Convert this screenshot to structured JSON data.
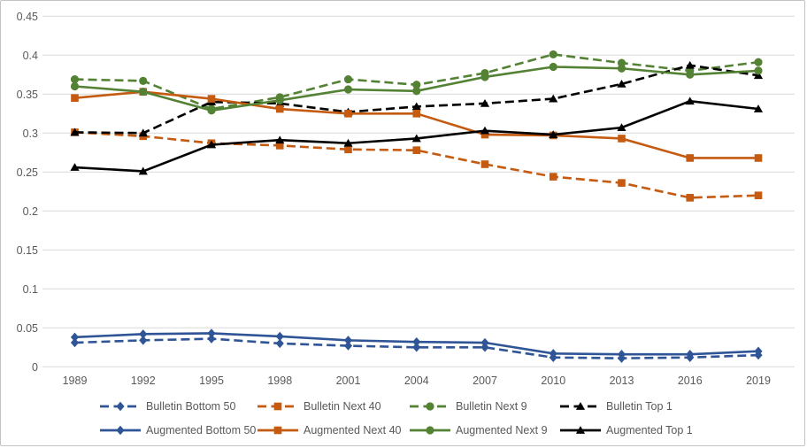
{
  "figure": {
    "background": "#ffffff",
    "border_color": "#c3c3c3",
    "gridline_color": "#d9d9d9",
    "label_color": "#595959"
  },
  "chart_data": {
    "type": "line",
    "x": [
      1989,
      1992,
      1995,
      1998,
      2001,
      2004,
      2007,
      2010,
      2013,
      2016,
      2019
    ],
    "x_tick_labels": [
      "1989",
      "1992",
      "1995",
      "1998",
      "2001",
      "2004",
      "2007",
      "2010",
      "2013",
      "2016",
      "2019"
    ],
    "y_ticks": [
      0,
      0.05,
      0.1,
      0.15,
      0.2,
      0.25,
      0.3,
      0.35,
      0.4,
      0.45
    ],
    "y_tick_labels": [
      "0",
      "0.05",
      "0.1",
      "0.15",
      "0.2",
      "0.25",
      "0.3",
      "0.35",
      "0.4",
      "0.45"
    ],
    "ylim": [
      0,
      0.45
    ],
    "grid": true,
    "legend_position": "bottom",
    "series": [
      {
        "name": "Bulletin Bottom 50",
        "style": "dashed",
        "color": "#2F5597",
        "marker": "diamond",
        "values": [
          0.031,
          0.034,
          0.036,
          0.03,
          0.027,
          0.025,
          0.025,
          0.012,
          0.011,
          0.012,
          0.015
        ]
      },
      {
        "name": "Bulletin Next 40",
        "style": "dashed",
        "color": "#C55A11",
        "marker": "square",
        "values": [
          0.301,
          0.296,
          0.287,
          0.284,
          0.279,
          0.278,
          0.26,
          0.244,
          0.236,
          0.217,
          0.22
        ]
      },
      {
        "name": "Bulletin Next 9",
        "style": "dashed",
        "color": "#548235",
        "marker": "circle",
        "values": [
          0.369,
          0.367,
          0.331,
          0.346,
          0.369,
          0.362,
          0.377,
          0.401,
          0.39,
          0.38,
          0.391
        ]
      },
      {
        "name": "Bulletin Top 1",
        "style": "dashed",
        "color": "#000000",
        "marker": "triangle",
        "values": [
          0.301,
          0.3,
          0.34,
          0.338,
          0.327,
          0.334,
          0.338,
          0.344,
          0.363,
          0.387,
          0.374
        ]
      },
      {
        "name": "Augmented Bottom 50",
        "style": "solid",
        "color": "#2F5597",
        "marker": "diamond",
        "values": [
          0.038,
          0.042,
          0.043,
          0.039,
          0.034,
          0.032,
          0.031,
          0.017,
          0.016,
          0.016,
          0.02
        ]
      },
      {
        "name": "Augmented Next 40",
        "style": "solid",
        "color": "#C55A11",
        "marker": "square",
        "values": [
          0.345,
          0.353,
          0.344,
          0.331,
          0.325,
          0.325,
          0.298,
          0.297,
          0.293,
          0.268,
          0.268
        ]
      },
      {
        "name": "Augmented Next 9",
        "style": "solid",
        "color": "#548235",
        "marker": "circle",
        "values": [
          0.36,
          0.353,
          0.329,
          0.342,
          0.356,
          0.354,
          0.372,
          0.385,
          0.383,
          0.375,
          0.38
        ]
      },
      {
        "name": "Augmented Top 1",
        "style": "solid",
        "color": "#000000",
        "marker": "triangle",
        "values": [
          0.256,
          0.251,
          0.285,
          0.291,
          0.287,
          0.293,
          0.303,
          0.298,
          0.307,
          0.341,
          0.331
        ]
      }
    ],
    "legend_rows": [
      [
        "Bulletin Bottom 50",
        "Bulletin Next 40",
        "Bulletin Next 9",
        "Bulletin Top 1"
      ],
      [
        "Augmented Bottom 50",
        "Augmented Next 40",
        "Augmented Next 9",
        "Augmented Top 1"
      ]
    ]
  }
}
